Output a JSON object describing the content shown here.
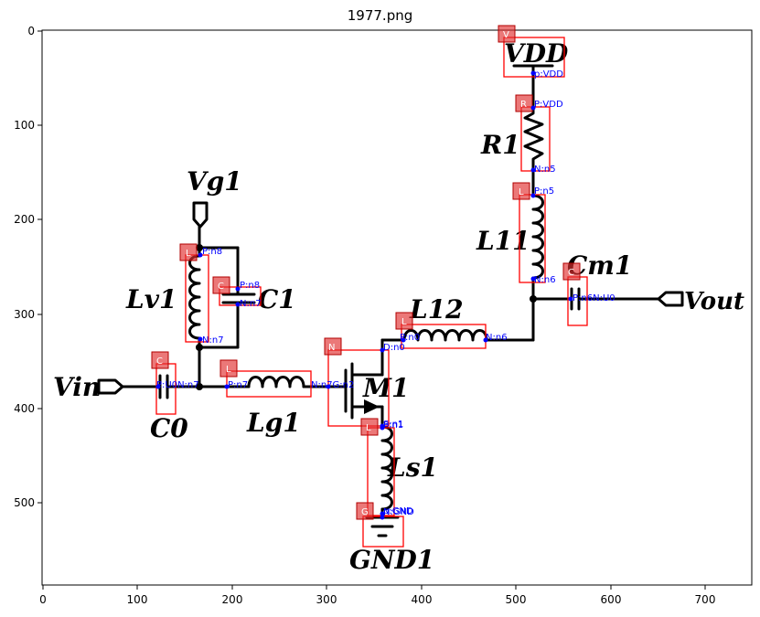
{
  "title": "1977.png",
  "axes": {
    "x_ticks": [
      "0",
      "100",
      "200",
      "300",
      "400",
      "500",
      "600",
      "700"
    ],
    "y_ticks": [
      "0",
      "100",
      "200",
      "300",
      "400",
      "500"
    ]
  },
  "labels": {
    "vdd": "VDD",
    "r1": "R1",
    "l11": "L11",
    "cm1": "Cm1",
    "vout": "Vout",
    "vg1": "Vg1",
    "lv1": "Lv1",
    "c1": "C1",
    "l12": "L12",
    "vin": "Vin",
    "c0": "C0",
    "lg1": "Lg1",
    "m1": "M1",
    "ls1": "Ls1",
    "gnd1": "GND1"
  },
  "tags": {
    "vdd": "V",
    "r1": "R",
    "l11": "L",
    "cm1": "C",
    "lv1": "L",
    "c1": "C",
    "l12": "L",
    "m1": "N",
    "c0": "C",
    "lg1": "L",
    "ls1": "L",
    "gnd1": "G"
  },
  "pins": {
    "vdd_p": "p:VDD",
    "r1_p": "P:VDD",
    "r1_n": "N:n5",
    "l11_p": "P:n5",
    "l11_n": "N:n6",
    "cm1": "P:n6N:U0",
    "lv1_p": "P:n8",
    "lv1_n": "N:n7",
    "c1_p": "P:n8",
    "c1_n": "N:n7",
    "l12_p": "P:n0",
    "l12_n": "N:n6",
    "m1_d": "D:n0",
    "m1_g": "N:n7G:n2",
    "m1_s": "S:n1",
    "c0": "P:U0N:n7",
    "lg1_p": "P:n7",
    "ls1_p": "P:n1",
    "ls1_n": "N:GND",
    "gnd_p": "p:GND"
  }
}
